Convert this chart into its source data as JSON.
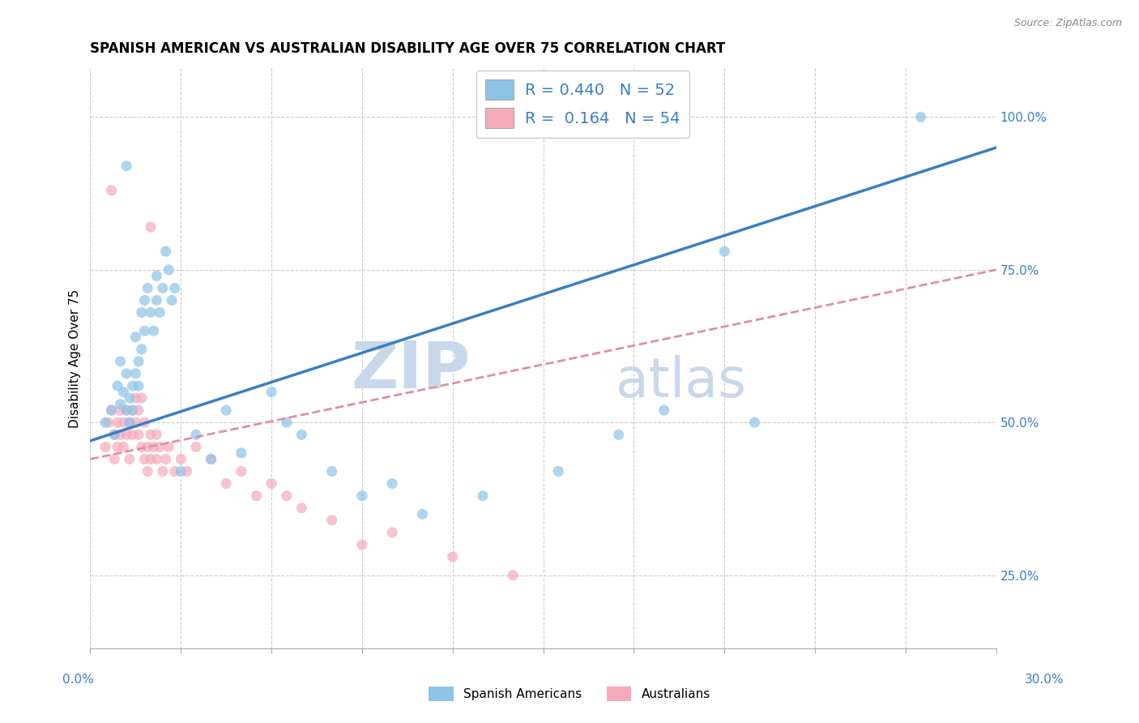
{
  "title": "SPANISH AMERICAN VS AUSTRALIAN DISABILITY AGE OVER 75 CORRELATION CHART",
  "source": "Source: ZipAtlas.com",
  "ylabel": "Disability Age Over 75",
  "right_yticks": [
    "25.0%",
    "50.0%",
    "75.0%",
    "100.0%"
  ],
  "right_ytick_vals": [
    0.25,
    0.5,
    0.75,
    1.0
  ],
  "xlim": [
    0.0,
    0.3
  ],
  "ylim": [
    0.13,
    1.08
  ],
  "R_blue": 0.44,
  "N_blue": 52,
  "R_pink": 0.164,
  "N_pink": 54,
  "blue_color": "#8EC4E8",
  "pink_color": "#F5AABB",
  "trend_blue": "#3A7EC4",
  "trend_pink": "#E090A0",
  "trend_pink_dashed": true,
  "grid_color": "#CCCCCC",
  "watermark_color": "#C8D8EA",
  "blue_scatter": [
    [
      0.005,
      0.5
    ],
    [
      0.007,
      0.52
    ],
    [
      0.008,
      0.48
    ],
    [
      0.009,
      0.56
    ],
    [
      0.01,
      0.53
    ],
    [
      0.01,
      0.6
    ],
    [
      0.011,
      0.55
    ],
    [
      0.012,
      0.52
    ],
    [
      0.012,
      0.58
    ],
    [
      0.013,
      0.5
    ],
    [
      0.013,
      0.54
    ],
    [
      0.014,
      0.56
    ],
    [
      0.014,
      0.52
    ],
    [
      0.015,
      0.58
    ],
    [
      0.015,
      0.64
    ],
    [
      0.016,
      0.6
    ],
    [
      0.016,
      0.56
    ],
    [
      0.017,
      0.68
    ],
    [
      0.017,
      0.62
    ],
    [
      0.018,
      0.7
    ],
    [
      0.018,
      0.65
    ],
    [
      0.019,
      0.72
    ],
    [
      0.02,
      0.68
    ],
    [
      0.021,
      0.65
    ],
    [
      0.022,
      0.7
    ],
    [
      0.022,
      0.74
    ],
    [
      0.023,
      0.68
    ],
    [
      0.024,
      0.72
    ],
    [
      0.025,
      0.78
    ],
    [
      0.026,
      0.75
    ],
    [
      0.027,
      0.7
    ],
    [
      0.028,
      0.72
    ],
    [
      0.03,
      0.42
    ],
    [
      0.035,
      0.48
    ],
    [
      0.04,
      0.44
    ],
    [
      0.045,
      0.52
    ],
    [
      0.05,
      0.45
    ],
    [
      0.06,
      0.55
    ],
    [
      0.065,
      0.5
    ],
    [
      0.07,
      0.48
    ],
    [
      0.08,
      0.42
    ],
    [
      0.09,
      0.38
    ],
    [
      0.1,
      0.4
    ],
    [
      0.11,
      0.35
    ],
    [
      0.13,
      0.38
    ],
    [
      0.155,
      0.42
    ],
    [
      0.175,
      0.48
    ],
    [
      0.19,
      0.52
    ],
    [
      0.22,
      0.5
    ],
    [
      0.012,
      0.92
    ],
    [
      0.275,
      1.0
    ],
    [
      0.21,
      0.78
    ]
  ],
  "pink_scatter": [
    [
      0.005,
      0.46
    ],
    [
      0.006,
      0.5
    ],
    [
      0.007,
      0.52
    ],
    [
      0.008,
      0.48
    ],
    [
      0.008,
      0.44
    ],
    [
      0.009,
      0.5
    ],
    [
      0.009,
      0.46
    ],
    [
      0.01,
      0.52
    ],
    [
      0.01,
      0.48
    ],
    [
      0.011,
      0.5
    ],
    [
      0.011,
      0.46
    ],
    [
      0.012,
      0.52
    ],
    [
      0.012,
      0.48
    ],
    [
      0.013,
      0.5
    ],
    [
      0.013,
      0.44
    ],
    [
      0.014,
      0.52
    ],
    [
      0.014,
      0.48
    ],
    [
      0.015,
      0.54
    ],
    [
      0.015,
      0.5
    ],
    [
      0.016,
      0.52
    ],
    [
      0.016,
      0.48
    ],
    [
      0.017,
      0.54
    ],
    [
      0.017,
      0.46
    ],
    [
      0.018,
      0.5
    ],
    [
      0.018,
      0.44
    ],
    [
      0.019,
      0.46
    ],
    [
      0.019,
      0.42
    ],
    [
      0.02,
      0.48
    ],
    [
      0.02,
      0.44
    ],
    [
      0.021,
      0.46
    ],
    [
      0.022,
      0.48
    ],
    [
      0.022,
      0.44
    ],
    [
      0.023,
      0.46
    ],
    [
      0.024,
      0.42
    ],
    [
      0.025,
      0.44
    ],
    [
      0.026,
      0.46
    ],
    [
      0.028,
      0.42
    ],
    [
      0.03,
      0.44
    ],
    [
      0.032,
      0.42
    ],
    [
      0.035,
      0.46
    ],
    [
      0.04,
      0.44
    ],
    [
      0.045,
      0.4
    ],
    [
      0.05,
      0.42
    ],
    [
      0.055,
      0.38
    ],
    [
      0.06,
      0.4
    ],
    [
      0.065,
      0.38
    ],
    [
      0.07,
      0.36
    ],
    [
      0.08,
      0.34
    ],
    [
      0.09,
      0.3
    ],
    [
      0.1,
      0.32
    ],
    [
      0.12,
      0.28
    ],
    [
      0.14,
      0.25
    ],
    [
      0.007,
      0.88
    ],
    [
      0.02,
      0.82
    ]
  ],
  "legend_blue_label": "Spanish Americans",
  "legend_pink_label": "Australians",
  "x_left_label": "0.0%",
  "x_right_label": "30.0%",
  "x_tick_count": 11
}
